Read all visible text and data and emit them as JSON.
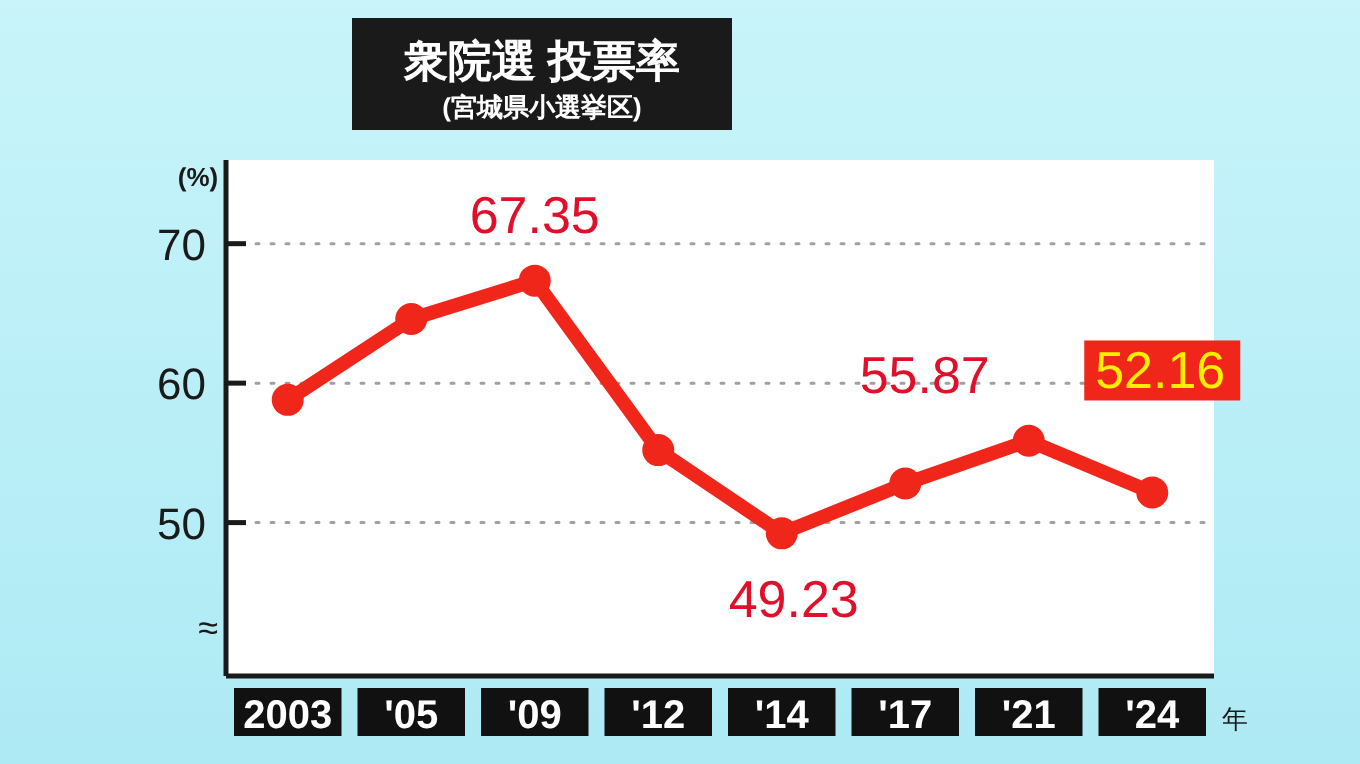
{
  "chart_data": {
    "type": "line",
    "title": "衆院選 投票率",
    "subtitle": "(宮城県小選挙区)",
    "ylabel": "(%)",
    "xlabel": "年",
    "categories": [
      "2003",
      "'05",
      "'09",
      "'12",
      "'14",
      "'17",
      "'21",
      "'24"
    ],
    "series": [
      {
        "color": "#f0261a",
        "values": [
          58.8,
          64.6,
          67.35,
          55.2,
          49.23,
          52.8,
          55.87,
          52.16
        ],
        "value_labels": [
          null,
          null,
          "67.35",
          null,
          "49.23",
          null,
          "55.87",
          "52.16"
        ]
      }
    ],
    "ylim": [
      39,
      76
    ],
    "yticks": [
      50,
      60,
      70
    ],
    "grid": "y",
    "marker": "circle",
    "line_style": "solid",
    "annotations": [
      "≈"
    ]
  }
}
